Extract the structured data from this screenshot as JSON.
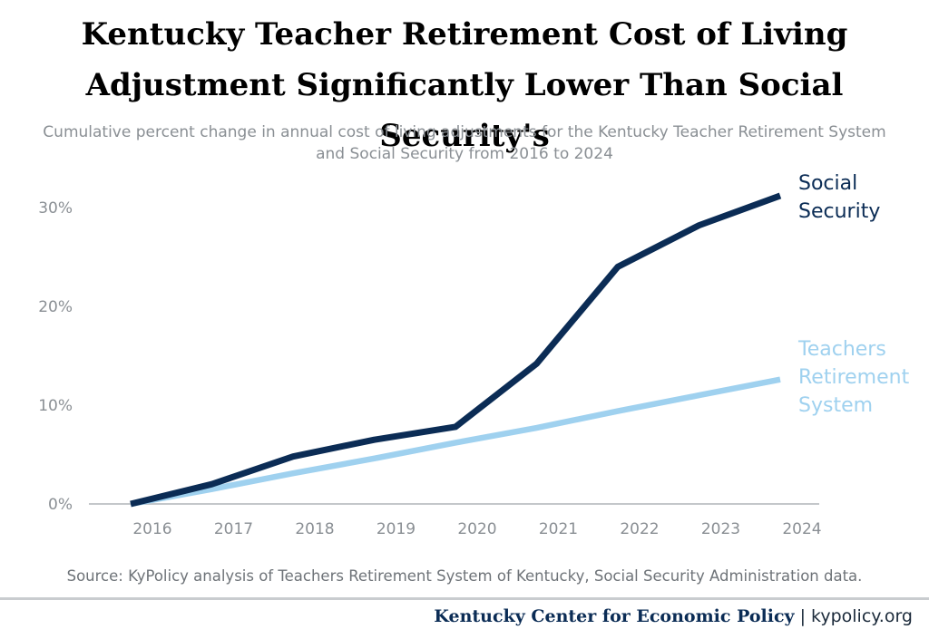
{
  "chart_data": {
    "type": "line",
    "title_lines": [
      "Kentucky Teacher Retirement Cost of Living",
      "Adjustment Significantly Lower Than Social Security's"
    ],
    "subtitle_lines": [
      "Cumulative percent change in annual cost of living adjustments for the Kentucky Teacher Retirement System",
      "and Social Security from 2016 to 2024"
    ],
    "x": [
      "2016",
      "2017",
      "2018",
      "2019",
      "2020",
      "2021",
      "2022",
      "2023",
      "2024"
    ],
    "y_ticks": [
      "0%",
      "10%",
      "20%",
      "30%"
    ],
    "ylim": [
      0,
      30
    ],
    "grid": false,
    "legend": "direct labels at line ends",
    "series": [
      {
        "name": "Social Security",
        "label_lines": [
          "Social",
          "Security"
        ],
        "color": "#0b2c55",
        "values": [
          0,
          2.0,
          4.8,
          6.5,
          7.8,
          14.2,
          24.0,
          28.2,
          31.2
        ]
      },
      {
        "name": "Teachers Retirement System",
        "label_lines": [
          "Teachers",
          "Retirement",
          "System"
        ],
        "color": "#9fd1ef",
        "values": [
          0,
          1.5,
          3.1,
          4.6,
          6.2,
          7.7,
          9.4,
          11.0,
          12.6
        ]
      }
    ]
  },
  "source": "Source: KyPolicy analysis of Teachers Retirement System of Kentucky, Social Security Administration data.",
  "footer": {
    "org": "Kentucky Center for Economic Policy",
    "separator": "|",
    "site": "kypolicy.org"
  }
}
